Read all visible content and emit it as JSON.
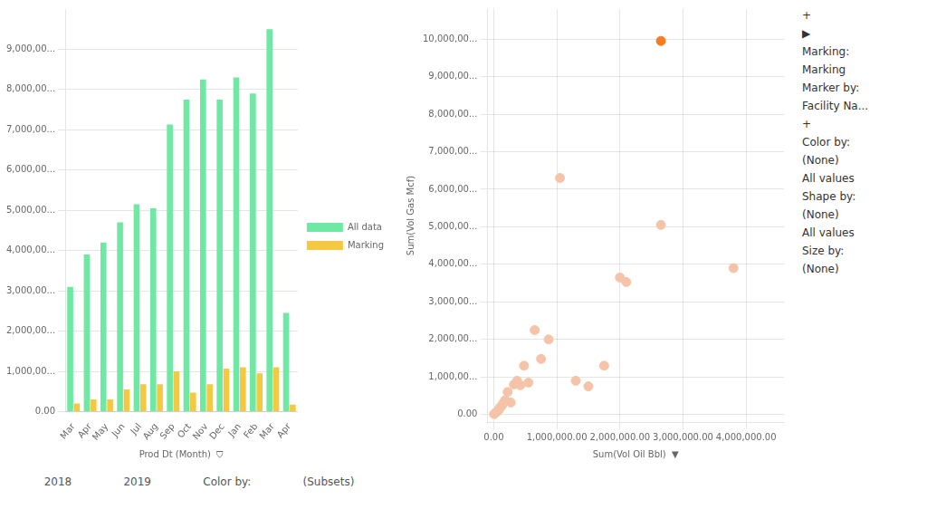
{
  "chart_data": [
    {
      "type": "bar",
      "categories": [
        "Mar",
        "Apr",
        "May",
        "Jun",
        "Jul",
        "Aug",
        "Sep",
        "Oct",
        "Nov",
        "Dec",
        "Jan",
        "Feb",
        "Mar",
        "Apr"
      ],
      "series": [
        {
          "name": "All data",
          "color": "#6EE8A2",
          "values": [
            3100000,
            3900000,
            4200000,
            4700000,
            5150000,
            5050000,
            7130000,
            7750000,
            8250000,
            7750000,
            8300000,
            7900000,
            9500000,
            2450000
          ]
        },
        {
          "name": "Marking",
          "color": "#F5C842",
          "values": [
            200000,
            300000,
            300000,
            550000,
            680000,
            680000,
            1000000,
            470000,
            680000,
            1070000,
            1100000,
            950000,
            1100000,
            175000
          ]
        }
      ],
      "x_label": "Prod Dt (Month)  ⛉",
      "ylim": [
        0,
        10000000
      ],
      "yticks": [
        {
          "value": 0,
          "label": "0.00"
        },
        {
          "value": 1000000,
          "label": "1,000,00..."
        },
        {
          "value": 2000000,
          "label": "2,000,00..."
        },
        {
          "value": 3000000,
          "label": "3,000,00..."
        },
        {
          "value": 4000000,
          "label": "4,000,00..."
        },
        {
          "value": 5000000,
          "label": "5,000,00..."
        },
        {
          "value": 6000000,
          "label": "6,000,00..."
        },
        {
          "value": 7000000,
          "label": "7,000,00..."
        },
        {
          "value": 8000000,
          "label": "8,000,00..."
        },
        {
          "value": 9000000,
          "label": "9,000,00..."
        }
      ],
      "grid": "y",
      "legend": "right",
      "annotations": [
        "2018",
        "2019",
        "Color by:",
        "(Subsets)"
      ]
    },
    {
      "type": "scatter",
      "series": [
        {
          "color": "#F5C4A8",
          "x": [
            5000,
            20000,
            40000,
            60000,
            80000,
            90000,
            110000,
            130000,
            150000,
            180000,
            220000,
            270000,
            320000,
            370000,
            420000,
            480000,
            550000,
            650000,
            750000,
            870000,
            1050000,
            1300000,
            1500000,
            1750000,
            2000000,
            2100000,
            3800000,
            2650000
          ],
          "values": [
            10000,
            30000,
            60000,
            90000,
            120000,
            170000,
            200000,
            240000,
            300000,
            380000,
            600000,
            320000,
            800000,
            900000,
            780000,
            1300000,
            850000,
            2250000,
            1480000,
            2000000,
            6300000,
            900000,
            750000,
            1300000,
            3650000,
            3530000,
            3900000,
            5050000
          ]
        },
        {
          "color": "#F57C20",
          "x": [
            2650000
          ],
          "values": [
            9950000
          ]
        }
      ],
      "x_label": "Sum(Vol Oil Bbl)  ▼",
      "y_label": "Sum(Vol Gas Mcf)",
      "xlim": [
        -100000,
        4600000
      ],
      "ylim": [
        -200000,
        10800000
      ],
      "xticks": [
        {
          "value": 0,
          "label": "0.00"
        },
        {
          "value": 1000000,
          "label": "1,000,000.00"
        },
        {
          "value": 2000000,
          "label": "2,000,000.00"
        },
        {
          "value": 3000000,
          "label": "3,000,000.00"
        },
        {
          "value": 4000000,
          "label": "4,000,000.00"
        }
      ],
      "yticks": [
        {
          "value": 0,
          "label": "0.00"
        },
        {
          "value": 1000000,
          "label": "1,000,00..."
        },
        {
          "value": 2000000,
          "label": "2,000,00..."
        },
        {
          "value": 3000000,
          "label": "3,000,00..."
        },
        {
          "value": 4000000,
          "label": "4,000,00..."
        },
        {
          "value": 5000000,
          "label": "5,000,00..."
        },
        {
          "value": 6000000,
          "label": "6,000,00..."
        },
        {
          "value": 7000000,
          "label": "7,000,00..."
        },
        {
          "value": 8000000,
          "label": "8,000,00..."
        },
        {
          "value": 9000000,
          "label": "9,000,00..."
        },
        {
          "value": 10000000,
          "label": "10,000,00..."
        }
      ],
      "grid": true,
      "annotations": [
        "+",
        "▶",
        "Marking:",
        "Marking",
        "Marker by:",
        "Facility Na...",
        "+",
        "Color by:",
        "(None)",
        "All values",
        "Shape by:",
        "(None)",
        "All values",
        "Size by:",
        "(None)"
      ]
    }
  ]
}
